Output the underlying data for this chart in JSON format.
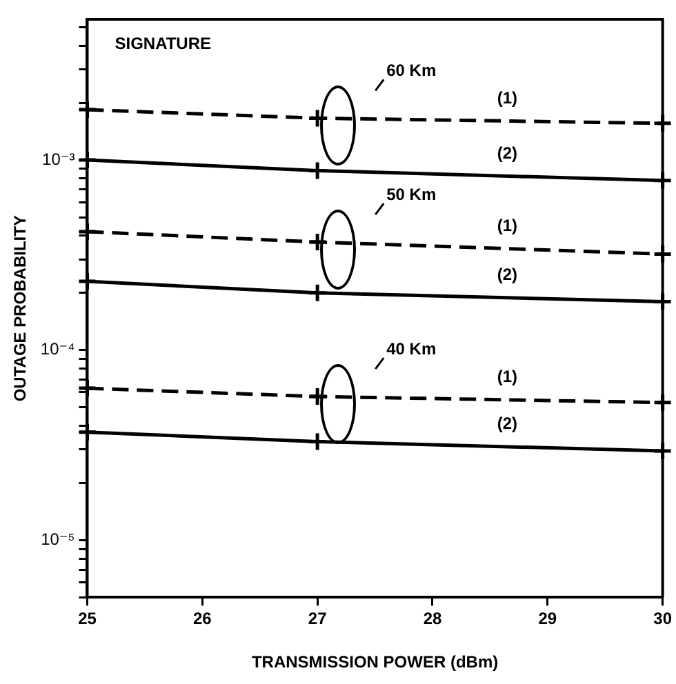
{
  "chart_data": {
    "type": "line",
    "xlabel": "TRANSMISSION POWER (dBm)",
    "ylabel": "OUTAGE PROBABILITY",
    "x": [
      25,
      27,
      30
    ],
    "series": [
      {
        "name": "(1)",
        "color": "#000000",
        "line_style": "dashed",
        "values": [
          0.00184,
          0.00166,
          0.00156
        ]
      },
      {
        "name": "(2)",
        "color": "#000000",
        "line_style": "solid",
        "values": [
          0.001,
          0.00088,
          0.00078
        ]
      },
      {
        "name": "(1)",
        "color": "#000000",
        "line_style": "dashed",
        "values": [
          0.00042,
          0.00037,
          0.00032
        ]
      },
      {
        "name": "(2)",
        "color": "#000000",
        "line_style": "solid",
        "values": [
          0.00023,
          0.0002,
          0.00018
        ]
      },
      {
        "name": "(1)",
        "color": "#000000",
        "line_style": "dashed",
        "values": [
          6.3e-05,
          5.7e-05,
          5.3e-05
        ]
      },
      {
        "name": "(2)",
        "color": "#000000",
        "line_style": "solid",
        "values": [
          3.7e-05,
          3.3e-05,
          2.95e-05
        ]
      }
    ],
    "annotations": [
      "SIGNATURE",
      "60 Km",
      "50 Km",
      "40 Km"
    ],
    "log": "y",
    "grid": false,
    "legend": false,
    "marker": "cross",
    "xlim": [
      25,
      30
    ],
    "xticks": [
      25,
      26,
      27,
      28,
      29,
      30
    ],
    "ylim": [
      5e-06,
      0.0055
    ],
    "yticks": [
      {
        "value": 5e-06,
        "label": null
      },
      {
        "value": 6e-06,
        "label": null
      },
      {
        "value": 7e-06,
        "label": null
      },
      {
        "value": 8e-06,
        "label": null
      },
      {
        "value": 9e-06,
        "label": null
      },
      {
        "value": 1e-05,
        "label": "10⁻⁵"
      },
      {
        "value": 2e-05,
        "label": null
      },
      {
        "value": 3e-05,
        "label": null
      },
      {
        "value": 4e-05,
        "label": null
      },
      {
        "value": 5e-05,
        "label": null
      },
      {
        "value": 6e-05,
        "label": null
      },
      {
        "value": 7e-05,
        "label": null
      },
      {
        "value": 8e-05,
        "label": null
      },
      {
        "value": 9e-05,
        "label": null
      },
      {
        "value": 0.0001,
        "label": "10⁻⁴"
      },
      {
        "value": 0.0002,
        "label": null
      },
      {
        "value": 0.0003,
        "label": null
      },
      {
        "value": 0.0004,
        "label": null
      },
      {
        "value": 0.0005,
        "label": null
      },
      {
        "value": 0.0006,
        "label": null
      },
      {
        "value": 0.0007,
        "label": null
      },
      {
        "value": 0.0008,
        "label": null
      },
      {
        "value": 0.0009,
        "label": null
      },
      {
        "value": 0.001,
        "label": "10⁻³"
      },
      {
        "value": 0.002,
        "label": null
      },
      {
        "value": 0.003,
        "label": null
      },
      {
        "value": 0.004,
        "label": null
      },
      {
        "value": 0.005,
        "label": null
      }
    ]
  }
}
